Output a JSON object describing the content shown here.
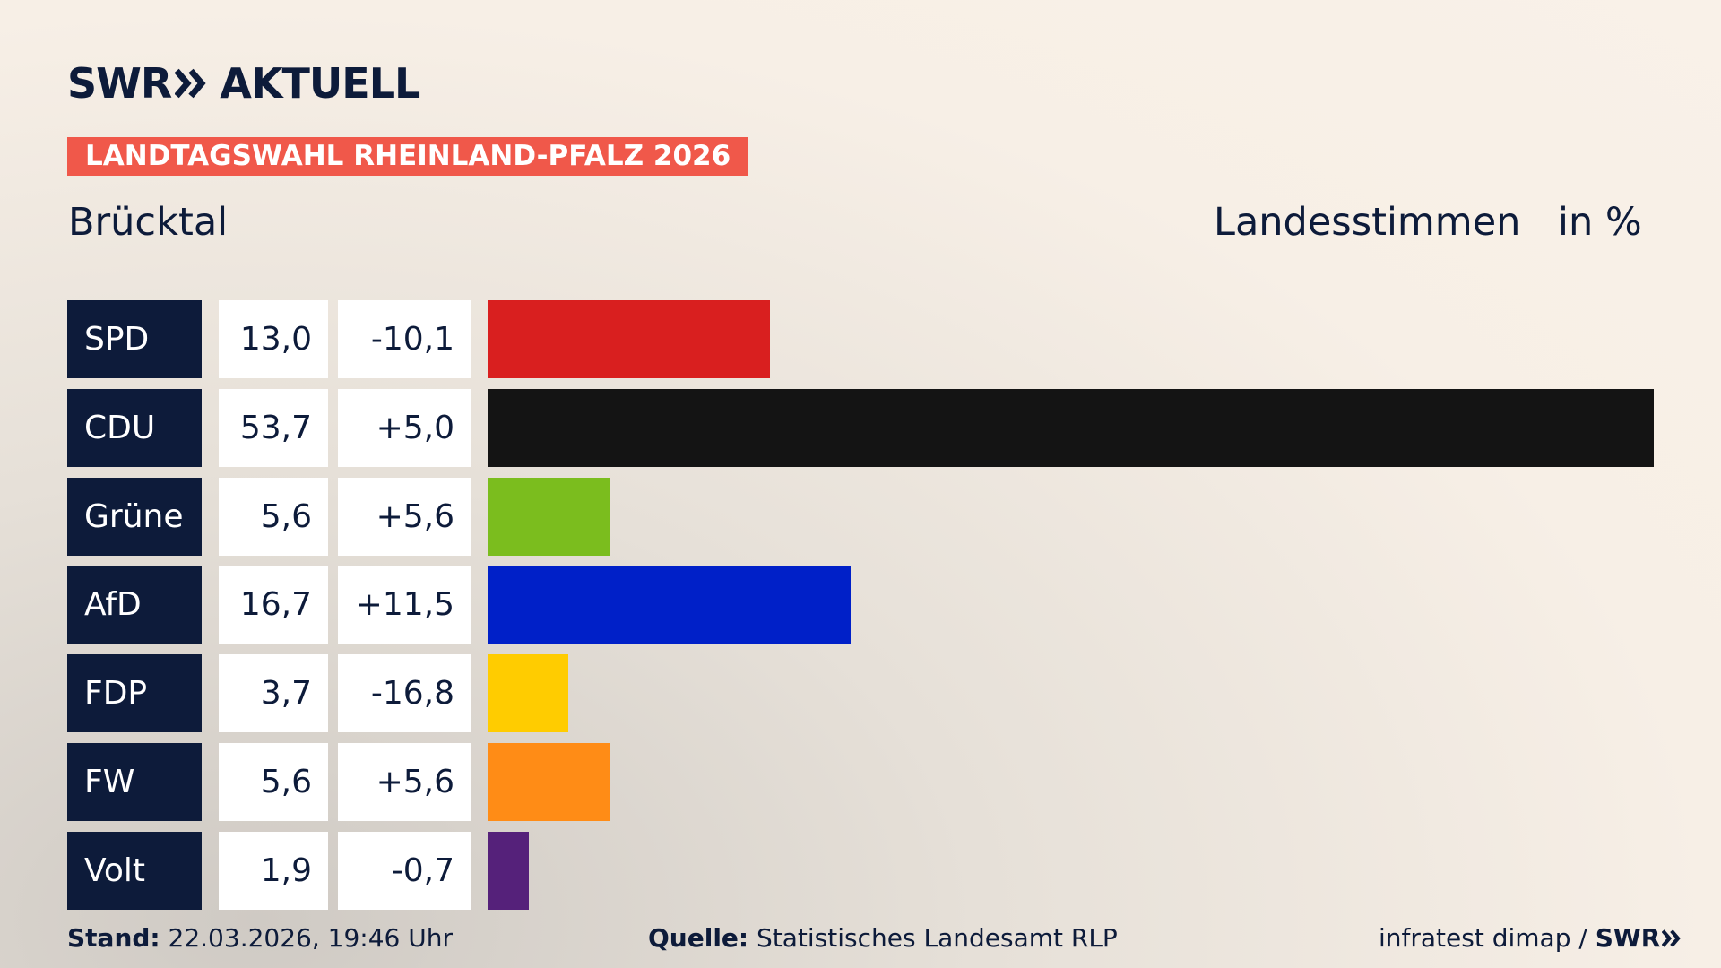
{
  "header": {
    "logo_left": "SWR",
    "logo_right": "AKTUELL",
    "banner": "LANDTAGSWAHL RHEINLAND-PFALZ 2026"
  },
  "chart_data": {
    "type": "bar",
    "orientation": "horizontal",
    "title": "Brücktal",
    "value_heading": "Landesstimmen",
    "unit_heading": "in %",
    "categories": [
      "SPD",
      "CDU",
      "Grüne",
      "AfD",
      "FDP",
      "FW",
      "Volt"
    ],
    "values": [
      13.0,
      53.7,
      5.6,
      16.7,
      3.7,
      5.6,
      1.9
    ],
    "value_labels": [
      "13,0",
      "53,7",
      "5,6",
      "16,7",
      "3,7",
      "5,6",
      "1,9"
    ],
    "changes": [
      -10.1,
      5.0,
      5.6,
      11.5,
      -16.8,
      5.6,
      -0.7
    ],
    "change_labels": [
      "-10,1",
      "+5,0",
      "+5,6",
      "+11,5",
      "-16,8",
      "+5,6",
      "-0,7"
    ],
    "colors": [
      "#d91f1f",
      "#141414",
      "#7bbd1e",
      "#0020c8",
      "#ffcc00",
      "#ff8c16",
      "#55217a"
    ]
  },
  "footer": {
    "stand_label": "Stand:",
    "stand": "22.03.2026, 19:46 Uhr",
    "source_label": "Quelle:",
    "source": "Statistisches Landesamt RLP",
    "credit": "infratest dimap /",
    "credit_logo": "SWR"
  }
}
